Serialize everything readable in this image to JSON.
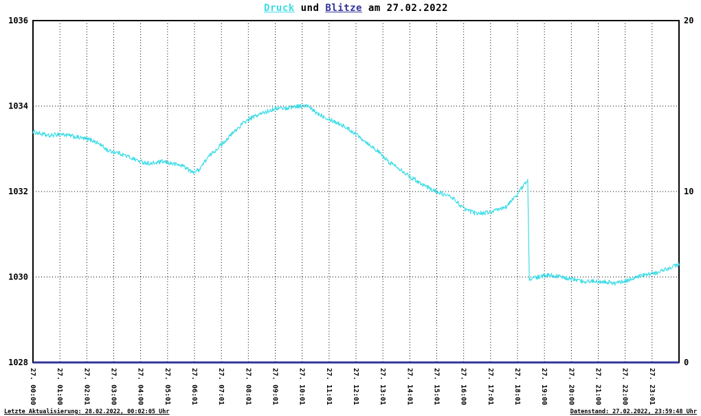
{
  "title": {
    "druck": "Druck",
    "mid": " und ",
    "blitze": "Blitze",
    "suffix": " am 27.02.2022"
  },
  "footer": {
    "left": "Letzte Aktualisierung: 28.02.2022, 00:02:05 Uhr",
    "right": "Datenstand: 27.02.2022, 23:59:48 Uhr"
  },
  "colors": {
    "druck": "#3CDCE6",
    "blitze": "#333399",
    "grid": "#000000",
    "frame": "#000000",
    "background": "#FFFFFF"
  },
  "chart_data": {
    "type": "line",
    "title": "Druck und Blitze am 27.02.2022",
    "grid": true,
    "x_axis": {
      "range": [
        0,
        24
      ],
      "tick_hours": [
        0,
        1,
        2,
        3,
        4,
        5,
        6,
        7,
        8,
        9,
        10,
        11,
        12,
        13,
        14,
        15,
        16,
        17,
        18,
        19,
        20,
        21,
        22,
        23
      ],
      "tick_labels": [
        "27. 00:00",
        "27. 01:00",
        "27. 02:01",
        "27. 03:00",
        "27. 04:00",
        "27. 05:01",
        "27. 06:01",
        "27. 07:01",
        "27. 08:01",
        "27. 09:01",
        "27. 10:01",
        "27. 11:01",
        "27. 12:01",
        "27. 13:01",
        "27. 14:01",
        "27. 15:01",
        "27. 16:00",
        "27. 17:01",
        "27. 18:01",
        "27. 19:00",
        "27. 20:00",
        "27. 21:00",
        "27. 22:00",
        "27. 23:01"
      ]
    },
    "y_left": {
      "series": "Druck",
      "min": 1028,
      "max": 1036,
      "ticks": [
        1028,
        1030,
        1032,
        1034,
        1036
      ]
    },
    "y_right": {
      "series": "Blitze",
      "min": 0,
      "max": 20,
      "ticks": [
        0,
        10,
        20
      ]
    },
    "series": [
      {
        "name": "Druck",
        "axis": "left",
        "color": "#3CDCE6",
        "line_width": 1.2,
        "noise": 0.05,
        "points": [
          [
            0,
            1033.4
          ],
          [
            0.3,
            1033.35
          ],
          [
            0.6,
            1033.3
          ],
          [
            1,
            1033.35
          ],
          [
            1.4,
            1033.3
          ],
          [
            1.8,
            1033.25
          ],
          [
            2.2,
            1033.2
          ],
          [
            2.5,
            1033.1
          ],
          [
            2.8,
            1032.95
          ],
          [
            3.2,
            1032.9
          ],
          [
            3.6,
            1032.8
          ],
          [
            4,
            1032.7
          ],
          [
            4.4,
            1032.65
          ],
          [
            4.8,
            1032.7
          ],
          [
            5.2,
            1032.65
          ],
          [
            5.6,
            1032.6
          ],
          [
            5.9,
            1032.45
          ],
          [
            6.15,
            1032.5
          ],
          [
            6.5,
            1032.8
          ],
          [
            7,
            1033.1
          ],
          [
            7.4,
            1033.35
          ],
          [
            7.8,
            1033.6
          ],
          [
            8.2,
            1033.75
          ],
          [
            8.6,
            1033.85
          ],
          [
            9,
            1033.95
          ],
          [
            9.4,
            1033.95
          ],
          [
            9.8,
            1034
          ],
          [
            10.2,
            1034
          ],
          [
            10.5,
            1033.85
          ],
          [
            11,
            1033.7
          ],
          [
            11.5,
            1033.55
          ],
          [
            12,
            1033.35
          ],
          [
            12.4,
            1033.15
          ],
          [
            12.8,
            1032.95
          ],
          [
            13.2,
            1032.7
          ],
          [
            13.6,
            1032.55
          ],
          [
            14,
            1032.35
          ],
          [
            14.4,
            1032.2
          ],
          [
            14.8,
            1032.05
          ],
          [
            15.2,
            1031.95
          ],
          [
            15.6,
            1031.85
          ],
          [
            16,
            1031.6
          ],
          [
            16.4,
            1031.5
          ],
          [
            16.8,
            1031.5
          ],
          [
            17.2,
            1031.55
          ],
          [
            17.6,
            1031.65
          ],
          [
            18,
            1031.95
          ],
          [
            18.3,
            1032.2
          ],
          [
            18.38,
            1032.25
          ],
          [
            18.44,
            1029.95
          ],
          [
            18.8,
            1030
          ],
          [
            19.2,
            1030.05
          ],
          [
            19.6,
            1030
          ],
          [
            20,
            1029.95
          ],
          [
            20.4,
            1029.9
          ],
          [
            20.8,
            1029.9
          ],
          [
            21.2,
            1029.9
          ],
          [
            21.6,
            1029.85
          ],
          [
            22,
            1029.9
          ],
          [
            22.4,
            1030
          ],
          [
            22.8,
            1030.05
          ],
          [
            23.2,
            1030.1
          ],
          [
            23.6,
            1030.2
          ],
          [
            24,
            1030.3
          ]
        ]
      },
      {
        "name": "Blitze",
        "axis": "right",
        "color": "#333399",
        "line_width": 3,
        "noise": 0,
        "points": [
          [
            0,
            0
          ],
          [
            24,
            0
          ]
        ]
      }
    ]
  }
}
